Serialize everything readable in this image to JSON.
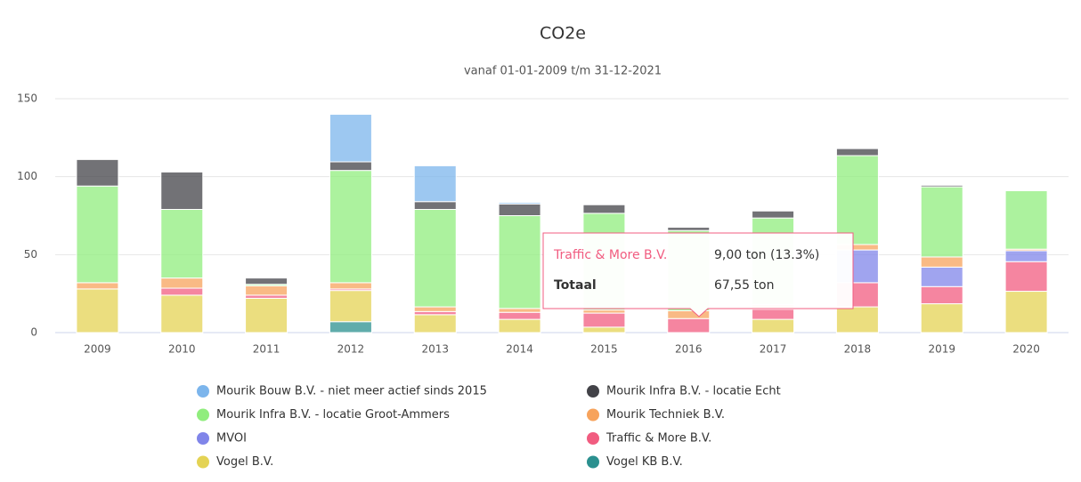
{
  "chart_data": {
    "type": "stacked_bar",
    "title": "CO2e",
    "subtitle": "vanaf 01-01-2009 t/m 31-12-2021",
    "categories": [
      "2009",
      "2010",
      "2011",
      "2012",
      "2013",
      "2014",
      "2015",
      "2016",
      "2017",
      "2018",
      "2019",
      "2020"
    ],
    "series": [
      {
        "name": "Mourik Bouw B.V. - niet meer actief sinds 2015",
        "color": "#7cb5ec",
        "values": [
          0,
          0,
          0,
          30.5,
          23,
          1,
          0,
          0,
          0,
          0,
          0,
          0
        ]
      },
      {
        "name": "Mourik Infra B.V. - locatie Echt",
        "color": "#434348",
        "values": [
          17,
          24,
          4,
          5.5,
          5,
          7.5,
          5.5,
          2.05,
          4.5,
          4.5,
          1,
          0
        ]
      },
      {
        "name": "Mourik Infra B.V. - locatie Groot-Ammers",
        "color": "#90ed7d",
        "values": [
          62,
          44,
          1,
          72,
          62.5,
          59.5,
          62,
          51.5,
          55.5,
          57,
          45,
          37.5
        ]
      },
      {
        "name": "Mourik Techniek B.V.",
        "color": "#f7a35c",
        "values": [
          4,
          6.5,
          6,
          4,
          3,
          2.5,
          2,
          5,
          3,
          3.5,
          6.5,
          1
        ]
      },
      {
        "name": "MVOI",
        "color": "#8085e9",
        "values": [
          0,
          0,
          0,
          0,
          0,
          0,
          0,
          0,
          0,
          21,
          12.5,
          7
        ]
      },
      {
        "name": "Traffic & More B.V.",
        "color": "#f15c80",
        "values": [
          0,
          4.5,
          2,
          1,
          2,
          4.5,
          9,
          9,
          6.5,
          15.5,
          11,
          19
        ]
      },
      {
        "name": "Vogel B.V.",
        "color": "#e4d354",
        "values": [
          28,
          24,
          22,
          20,
          11.5,
          8.5,
          3.5,
          0,
          8.5,
          16.5,
          18.5,
          26.5
        ]
      },
      {
        "name": "Vogel KB B.V.",
        "color": "#2b908f",
        "values": [
          0,
          0,
          0,
          7,
          0,
          0,
          0,
          0,
          0,
          0,
          0,
          0
        ]
      }
    ],
    "ylim": [
      0,
      150
    ],
    "yticks": [
      0,
      50,
      100,
      150
    ],
    "grid": true,
    "legend": "bottom",
    "tooltip": {
      "series": "Traffic & More B.V.",
      "value": "9,00 ton (13.3%)",
      "total_label": "Totaal",
      "total": "67,55 ton"
    }
  }
}
